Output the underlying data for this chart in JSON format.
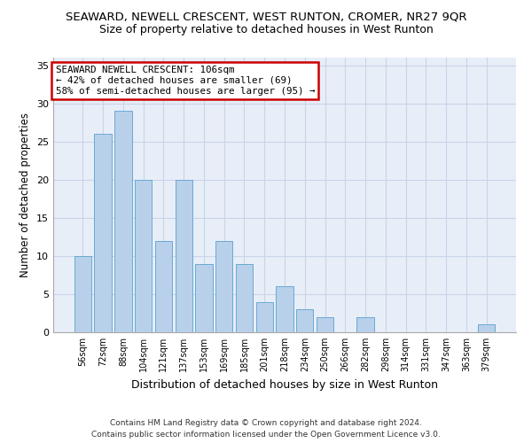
{
  "title": "SEAWARD, NEWELL CRESCENT, WEST RUNTON, CROMER, NR27 9QR",
  "subtitle": "Size of property relative to detached houses in West Runton",
  "xlabel": "Distribution of detached houses by size in West Runton",
  "ylabel": "Number of detached properties",
  "categories": [
    "56sqm",
    "72sqm",
    "88sqm",
    "104sqm",
    "121sqm",
    "137sqm",
    "153sqm",
    "169sqm",
    "185sqm",
    "201sqm",
    "218sqm",
    "234sqm",
    "250sqm",
    "266sqm",
    "282sqm",
    "298sqm",
    "314sqm",
    "331sqm",
    "347sqm",
    "363sqm",
    "379sqm"
  ],
  "values": [
    10,
    26,
    29,
    20,
    12,
    20,
    9,
    12,
    9,
    4,
    6,
    3,
    2,
    0,
    2,
    0,
    0,
    0,
    0,
    0,
    1
  ],
  "bar_color": "#b8d0ea",
  "bar_edge_color": "#6aaad4",
  "annotation_title": "SEAWARD NEWELL CRESCENT: 106sqm",
  "annotation_line1": "← 42% of detached houses are smaller (69)",
  "annotation_line2": "58% of semi-detached houses are larger (95) →",
  "annotation_box_color": "#ffffff",
  "annotation_box_edge_color": "#cc0000",
  "ylim": [
    0,
    36
  ],
  "yticks": [
    0,
    5,
    10,
    15,
    20,
    25,
    30,
    35
  ],
  "footer_line1": "Contains HM Land Registry data © Crown copyright and database right 2024.",
  "footer_line2": "Contains public sector information licensed under the Open Government Licence v3.0.",
  "bg_color": "#e8eef8",
  "grid_color": "#c8d4e8",
  "title_fontsize": 9.5,
  "subtitle_fontsize": 9,
  "xlabel_fontsize": 9,
  "ylabel_fontsize": 8.5,
  "footer_fontsize": 6.5
}
